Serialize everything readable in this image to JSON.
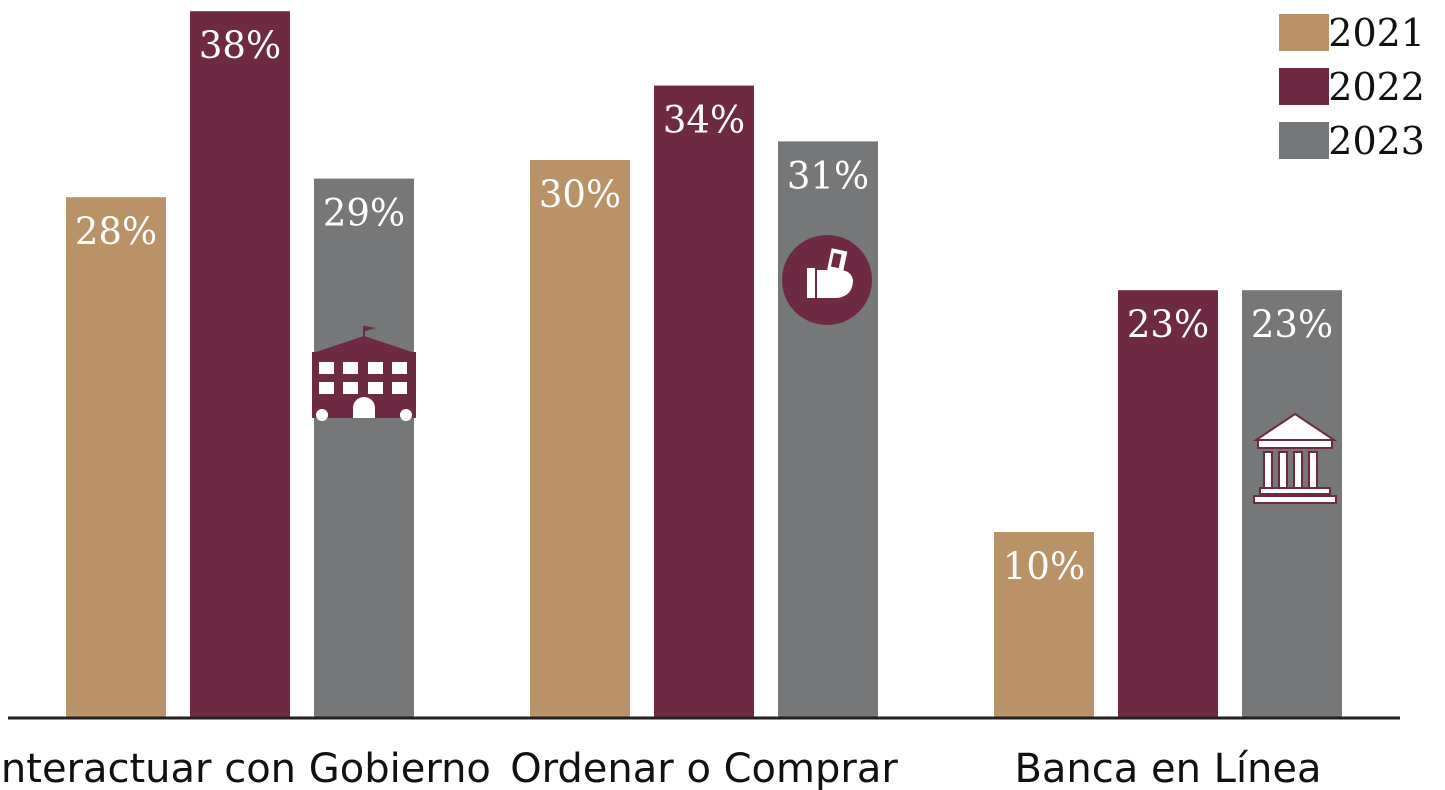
{
  "chart_data": {
    "type": "bar",
    "categories": [
      "Interactuar con Gobierno",
      "Ordenar o Comprar",
      "Banca en Línea"
    ],
    "series": [
      {
        "name": "2021",
        "color": "#b99267",
        "values": [
          28,
          30,
          10
        ],
        "labels": [
          "28%",
          "30%",
          "10%"
        ]
      },
      {
        "name": "2022",
        "color": "#6d2a42",
        "values": [
          38,
          34,
          23
        ],
        "labels": [
          "38%",
          "34%",
          "23%"
        ]
      },
      {
        "name": "2023",
        "color": "#767778",
        "values": [
          29,
          31,
          23
        ],
        "labels": [
          "29%",
          "31%",
          "23%"
        ]
      }
    ],
    "legend_position": "top-right",
    "icons": [
      "government-building-icon",
      "hand-holding-money-icon",
      "bank-icon"
    ],
    "grid": false
  }
}
